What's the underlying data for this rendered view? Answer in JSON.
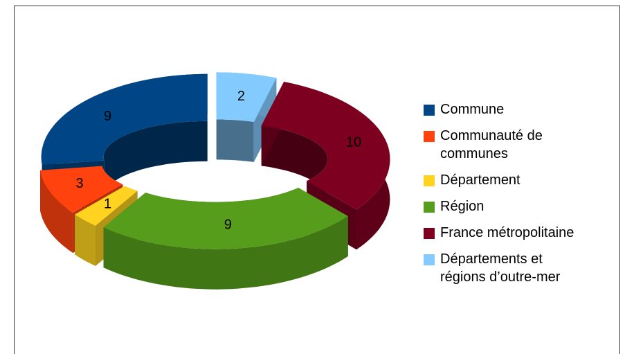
{
  "chart_data": {
    "type": "donut3d",
    "categories": [
      "Commune",
      "Communauté de communes",
      "Département",
      "Région",
      "France métropolitaine",
      "Départements et régions d’outre-mer"
    ],
    "values": [
      9,
      3,
      1,
      9,
      10,
      2
    ],
    "colors": [
      "#004586",
      "#ff420e",
      "#ffd320",
      "#579d1c",
      "#7e0021",
      "#83caff"
    ],
    "legend": "right"
  }
}
